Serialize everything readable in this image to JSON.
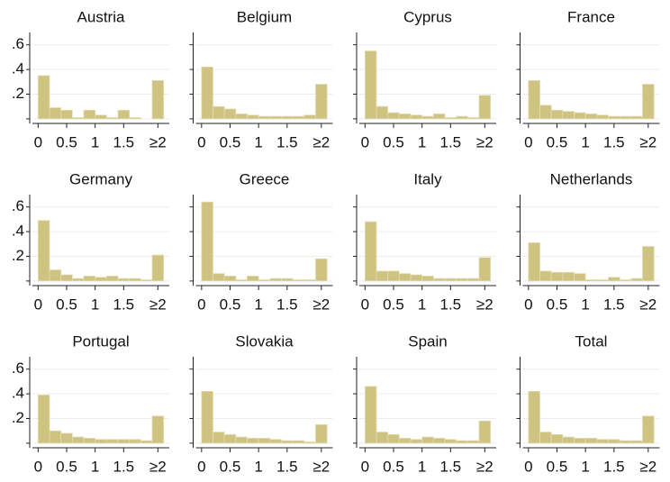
{
  "chart_data": [
    {
      "type": "histogram",
      "title": "Austria",
      "bins": [
        0,
        0.2,
        0.4,
        0.6,
        0.8,
        1,
        1.2,
        1.4,
        1.6,
        1.8,
        2,
        2.2
      ],
      "values": [
        0.35,
        0.09,
        0.07,
        0.01,
        0.07,
        0.03,
        0.01,
        0.07,
        0.01,
        0.0,
        0.31
      ],
      "color": "#cfc381",
      "xlim": [
        -0.1,
        2.3
      ],
      "ylim": [
        -0.03,
        0.7
      ],
      "xticks": [
        0,
        0.5,
        1,
        1.5,
        {
          "value": 2.1,
          "label": "≥2"
        }
      ],
      "yticks": [
        0,
        {
          "value": 0.2,
          "label": ".2"
        },
        {
          "value": 0.4,
          "label": ".4"
        },
        {
          "value": 0.6,
          "label": ".6"
        }
      ],
      "grid": true
    },
    {
      "type": "histogram",
      "title": "Belgium",
      "bins": [
        0,
        0.2,
        0.4,
        0.6,
        0.8,
        1,
        1.2,
        1.4,
        1.6,
        1.8,
        2,
        2.2
      ],
      "values": [
        0.42,
        0.1,
        0.08,
        0.04,
        0.03,
        0.02,
        0.02,
        0.02,
        0.02,
        0.03,
        0.28
      ],
      "color": "#cfc381",
      "xlim": [
        -0.1,
        2.3
      ],
      "ylim": [
        -0.03,
        0.7
      ],
      "xticks": [
        0,
        0.5,
        1,
        1.5,
        {
          "value": 2.1,
          "label": "≥2"
        }
      ],
      "yticks": [
        0,
        0.2,
        0.4,
        0.6
      ],
      "grid": true
    },
    {
      "type": "histogram",
      "title": "Cyprus",
      "bins": [
        0,
        0.2,
        0.4,
        0.6,
        0.8,
        1,
        1.2,
        1.4,
        1.6,
        1.8,
        2,
        2.2
      ],
      "values": [
        0.55,
        0.1,
        0.05,
        0.04,
        0.03,
        0.02,
        0.04,
        0.01,
        0.02,
        0.01,
        0.19
      ],
      "color": "#cfc381",
      "xlim": [
        -0.1,
        2.3
      ],
      "ylim": [
        -0.03,
        0.7
      ],
      "xticks": [
        0,
        0.5,
        1,
        1.5,
        {
          "value": 2.1,
          "label": "≥2"
        }
      ],
      "yticks": [
        0,
        0.2,
        0.4,
        0.6
      ],
      "grid": true
    },
    {
      "type": "histogram",
      "title": "France",
      "bins": [
        0,
        0.2,
        0.4,
        0.6,
        0.8,
        1,
        1.2,
        1.4,
        1.6,
        1.8,
        2,
        2.2
      ],
      "values": [
        0.31,
        0.11,
        0.07,
        0.06,
        0.05,
        0.04,
        0.03,
        0.02,
        0.02,
        0.02,
        0.28
      ],
      "color": "#cfc381",
      "xlim": [
        -0.1,
        2.3
      ],
      "ylim": [
        -0.03,
        0.7
      ],
      "xticks": [
        0,
        0.5,
        1,
        1.5,
        {
          "value": 2.1,
          "label": "≥2"
        }
      ],
      "yticks": [
        0,
        0.2,
        0.4,
        0.6
      ],
      "grid": true
    },
    {
      "type": "histogram",
      "title": "Germany",
      "bins": [
        0,
        0.2,
        0.4,
        0.6,
        0.8,
        1,
        1.2,
        1.4,
        1.6,
        1.8,
        2,
        2.2
      ],
      "values": [
        0.49,
        0.09,
        0.05,
        0.02,
        0.04,
        0.03,
        0.04,
        0.02,
        0.02,
        0.01,
        0.21
      ],
      "color": "#cfc381",
      "xlim": [
        -0.1,
        2.3
      ],
      "ylim": [
        -0.03,
        0.7
      ],
      "xticks": [
        0,
        0.5,
        1,
        1.5,
        {
          "value": 2.1,
          "label": "≥2"
        }
      ],
      "yticks": [
        0,
        {
          "value": 0.2,
          "label": ".2"
        },
        {
          "value": 0.4,
          "label": ".4"
        },
        {
          "value": 0.6,
          "label": ".6"
        }
      ],
      "grid": true
    },
    {
      "type": "histogram",
      "title": "Greece",
      "bins": [
        0,
        0.2,
        0.4,
        0.6,
        0.8,
        1,
        1.2,
        1.4,
        1.6,
        1.8,
        2,
        2.2
      ],
      "values": [
        0.64,
        0.06,
        0.04,
        0.01,
        0.04,
        0.01,
        0.02,
        0.02,
        0.01,
        0.01,
        0.18
      ],
      "color": "#cfc381",
      "xlim": [
        -0.1,
        2.3
      ],
      "ylim": [
        -0.03,
        0.7
      ],
      "xticks": [
        0,
        0.5,
        1,
        1.5,
        {
          "value": 2.1,
          "label": "≥2"
        }
      ],
      "yticks": [
        0,
        0.2,
        0.4,
        0.6
      ],
      "grid": true
    },
    {
      "type": "histogram",
      "title": "Italy",
      "bins": [
        0,
        0.2,
        0.4,
        0.6,
        0.8,
        1,
        1.2,
        1.4,
        1.6,
        1.8,
        2,
        2.2
      ],
      "values": [
        0.48,
        0.08,
        0.08,
        0.06,
        0.05,
        0.04,
        0.02,
        0.02,
        0.02,
        0.02,
        0.19
      ],
      "color": "#cfc381",
      "xlim": [
        -0.1,
        2.3
      ],
      "ylim": [
        -0.03,
        0.7
      ],
      "xticks": [
        0,
        0.5,
        1,
        1.5,
        {
          "value": 2.1,
          "label": "≥2"
        }
      ],
      "yticks": [
        0,
        0.2,
        0.4,
        0.6
      ],
      "grid": true
    },
    {
      "type": "histogram",
      "title": "Netherlands",
      "bins": [
        0,
        0.2,
        0.4,
        0.6,
        0.8,
        1,
        1.2,
        1.4,
        1.6,
        1.8,
        2,
        2.2
      ],
      "values": [
        0.31,
        0.08,
        0.07,
        0.07,
        0.06,
        0.01,
        0.01,
        0.03,
        0.01,
        0.02,
        0.28
      ],
      "color": "#cfc381",
      "xlim": [
        -0.1,
        2.3
      ],
      "ylim": [
        -0.03,
        0.7
      ],
      "xticks": [
        0,
        0.5,
        1,
        1.5,
        {
          "value": 2.1,
          "label": "≥2"
        }
      ],
      "yticks": [
        0,
        0.2,
        0.4,
        0.6
      ],
      "grid": true
    },
    {
      "type": "histogram",
      "title": "Portugal",
      "bins": [
        0,
        0.2,
        0.4,
        0.6,
        0.8,
        1,
        1.2,
        1.4,
        1.6,
        1.8,
        2,
        2.2
      ],
      "values": [
        0.39,
        0.1,
        0.08,
        0.05,
        0.04,
        0.03,
        0.03,
        0.03,
        0.03,
        0.02,
        0.22
      ],
      "color": "#cfc381",
      "xlim": [
        -0.1,
        2.3
      ],
      "ylim": [
        -0.03,
        0.7
      ],
      "xticks": [
        0,
        0.5,
        1,
        1.5,
        {
          "value": 2.1,
          "label": "≥2"
        }
      ],
      "yticks": [
        0,
        {
          "value": 0.2,
          "label": ".2"
        },
        {
          "value": 0.4,
          "label": ".4"
        },
        {
          "value": 0.6,
          "label": ".6"
        }
      ],
      "grid": true
    },
    {
      "type": "histogram",
      "title": "Slovakia",
      "bins": [
        0,
        0.2,
        0.4,
        0.6,
        0.8,
        1,
        1.2,
        1.4,
        1.6,
        1.8,
        2,
        2.2
      ],
      "values": [
        0.42,
        0.09,
        0.07,
        0.05,
        0.04,
        0.04,
        0.03,
        0.02,
        0.02,
        0.01,
        0.15
      ],
      "color": "#cfc381",
      "xlim": [
        -0.1,
        2.3
      ],
      "ylim": [
        -0.03,
        0.7
      ],
      "xticks": [
        0,
        0.5,
        1,
        1.5,
        {
          "value": 2.1,
          "label": "≥2"
        }
      ],
      "yticks": [
        0,
        0.2,
        0.4,
        0.6
      ],
      "grid": true
    },
    {
      "type": "histogram",
      "title": "Spain",
      "bins": [
        0,
        0.2,
        0.4,
        0.6,
        0.8,
        1,
        1.2,
        1.4,
        1.6,
        1.8,
        2,
        2.2
      ],
      "values": [
        0.46,
        0.09,
        0.07,
        0.04,
        0.03,
        0.05,
        0.04,
        0.03,
        0.02,
        0.02,
        0.18
      ],
      "color": "#cfc381",
      "xlim": [
        -0.1,
        2.3
      ],
      "ylim": [
        -0.03,
        0.7
      ],
      "xticks": [
        0,
        0.5,
        1,
        1.5,
        {
          "value": 2.1,
          "label": "≥2"
        }
      ],
      "yticks": [
        0,
        0.2,
        0.4,
        0.6
      ],
      "grid": true
    },
    {
      "type": "histogram",
      "title": "Total",
      "bins": [
        0,
        0.2,
        0.4,
        0.6,
        0.8,
        1,
        1.2,
        1.4,
        1.6,
        1.8,
        2,
        2.2
      ],
      "values": [
        0.42,
        0.09,
        0.07,
        0.05,
        0.04,
        0.04,
        0.03,
        0.03,
        0.02,
        0.02,
        0.22
      ],
      "color": "#cfc381",
      "xlim": [
        -0.1,
        2.3
      ],
      "ylim": [
        -0.03,
        0.7
      ],
      "xticks": [
        0,
        0.5,
        1,
        1.5,
        {
          "value": 2.1,
          "label": "≥2"
        }
      ],
      "yticks": [
        0,
        0.2,
        0.4,
        0.6
      ],
      "grid": true
    }
  ]
}
